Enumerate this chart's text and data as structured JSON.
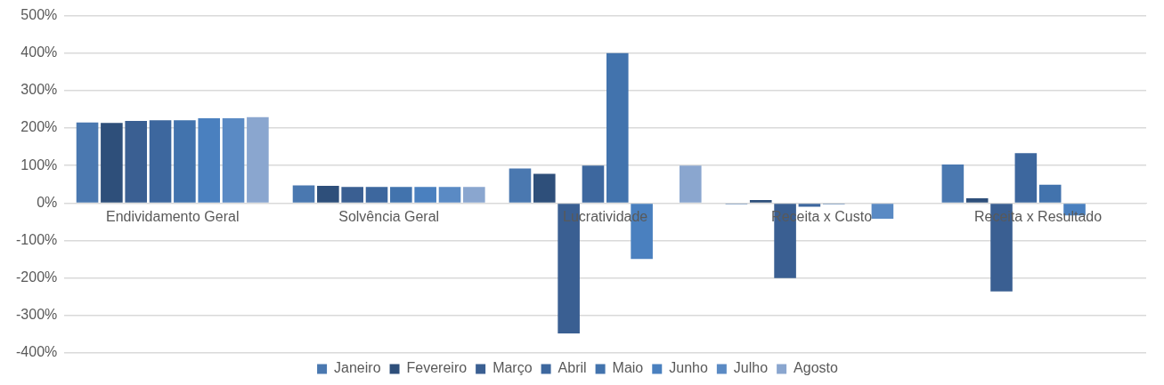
{
  "chart_data": {
    "type": "bar",
    "categories": [
      "Endividamento Geral",
      "Solvência Geral",
      "Lucratividade",
      "Receita x Custo",
      "Receita x Resultado"
    ],
    "series": [
      {
        "name": "Janeiro",
        "color": "#4a78b0",
        "values": [
          215,
          47,
          92,
          -3,
          103
        ]
      },
      {
        "name": "Fevereiro",
        "color": "#2e4f7a",
        "values": [
          214,
          46,
          78,
          8,
          13
        ]
      },
      {
        "name": "Março",
        "color": "#3a5f92",
        "values": [
          219,
          43,
          -348,
          -200,
          -236
        ]
      },
      {
        "name": "Abril",
        "color": "#3d679e",
        "values": [
          221,
          43,
          100,
          -10,
          133
        ]
      },
      {
        "name": "Maio",
        "color": "#4273ad",
        "values": [
          221,
          43,
          400,
          -3,
          49
        ]
      },
      {
        "name": "Junho",
        "color": "#4a80bf",
        "values": [
          226,
          43,
          -149,
          null,
          -33
        ]
      },
      {
        "name": "Julho",
        "color": "#5a8ac4",
        "values": [
          226,
          43,
          null,
          -42,
          null
        ]
      },
      {
        "name": "Agosto",
        "color": "#8aa6cf",
        "values": [
          229,
          43,
          100,
          null,
          null
        ]
      }
    ],
    "ylim": [
      -400,
      500
    ],
    "yticks": [
      {
        "value": -400,
        "label": "-400%"
      },
      {
        "value": -300,
        "label": "-300%"
      },
      {
        "value": -200,
        "label": "-200%"
      },
      {
        "value": -100,
        "label": "-100%"
      },
      {
        "value": 0,
        "label": "0%"
      },
      {
        "value": 100,
        "label": "100%"
      },
      {
        "value": 200,
        "label": "200%"
      },
      {
        "value": 300,
        "label": "300%"
      },
      {
        "value": 400,
        "label": "400%"
      },
      {
        "value": 500,
        "label": "500%"
      }
    ],
    "grid": "y",
    "legend": "bottom"
  }
}
